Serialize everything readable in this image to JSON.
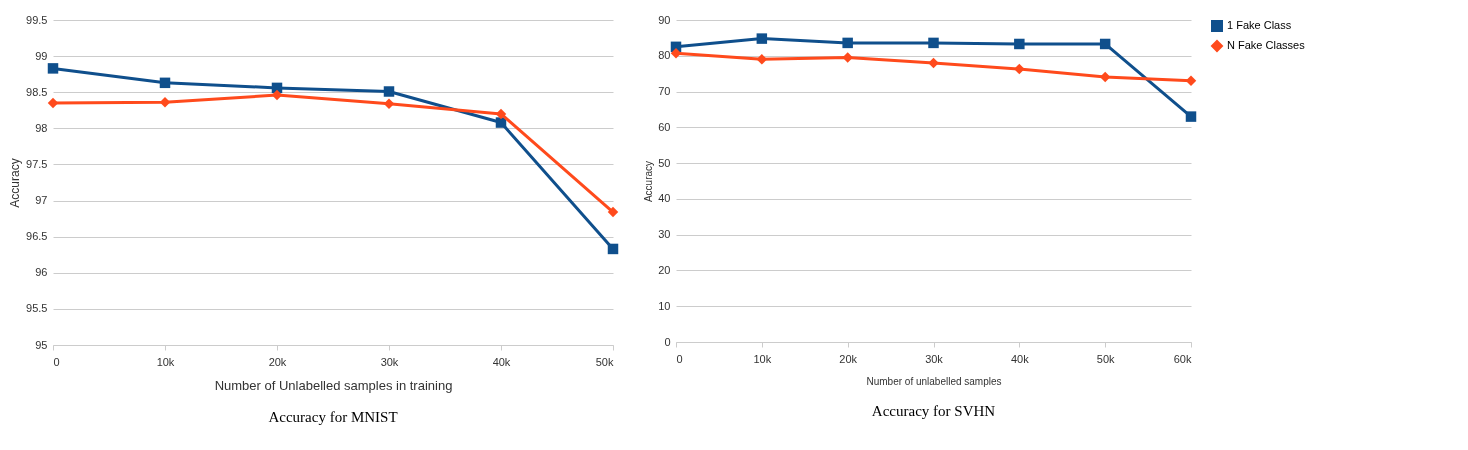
{
  "chart_data": [
    {
      "type": "line",
      "title": "Accuracy for MNIST",
      "xlabel": "Number of Unlabelled samples in training",
      "ylabel": "Accuracy",
      "categories": [
        "0",
        "10k",
        "20k",
        "30k",
        "40k",
        "50k"
      ],
      "series": [
        {
          "color": "#0f4f8c",
          "marker": "square",
          "values": [
            98.83,
            98.63,
            98.56,
            98.51,
            98.08,
            96.33
          ]
        },
        {
          "color": "#ff4a1c",
          "marker": "diamond",
          "values": [
            98.35,
            98.36,
            98.46,
            98.34,
            98.2,
            96.84
          ]
        }
      ],
      "ylim": [
        95,
        99.5
      ],
      "yticks": [
        95,
        95.5,
        96,
        96.5,
        97,
        97.5,
        98,
        98.5,
        99,
        99.5
      ],
      "grid": "y",
      "legend": false,
      "line_style": "solid"
    },
    {
      "type": "line",
      "title": "Accuracy for SVHN",
      "xlabel": "Number of unlabelled samples",
      "ylabel": "Accuracy",
      "categories": [
        "0",
        "10k",
        "20k",
        "30k",
        "40k",
        "50k",
        "60k"
      ],
      "series": [
        {
          "name": "1 Fake Class",
          "color": "#0f4f8c",
          "marker": "square",
          "values": [
            82.5,
            84.8,
            83.6,
            83.6,
            83.3,
            83.3,
            63
          ]
        },
        {
          "name": "N Fake Classes",
          "color": "#ff4a1c",
          "marker": "diamond",
          "values": [
            80.7,
            79.0,
            79.5,
            78.0,
            76.3,
            74.1,
            73.0
          ]
        }
      ],
      "ylim": [
        0,
        90
      ],
      "yticks": [
        0,
        10,
        20,
        30,
        40,
        50,
        60,
        70,
        80,
        90
      ],
      "grid": "y",
      "legend": "right",
      "line_style": "solid"
    }
  ]
}
